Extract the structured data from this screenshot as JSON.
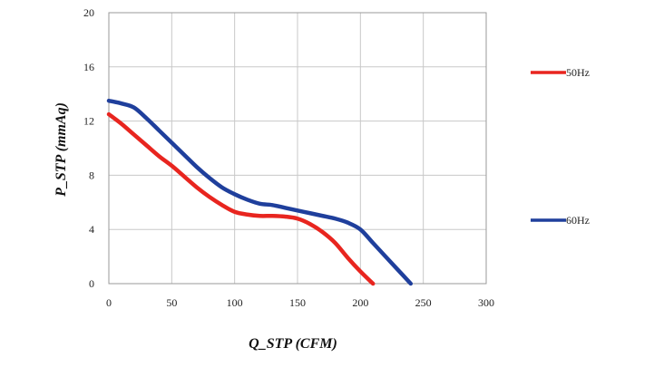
{
  "chart_data": {
    "type": "line",
    "title": "",
    "xlabel": "Q_STP (CFM)",
    "ylabel": "P_STP (mmAq)",
    "xlim": [
      0,
      300
    ],
    "ylim": [
      0,
      20
    ],
    "x_ticks": [
      0,
      50,
      100,
      150,
      200,
      250,
      300
    ],
    "y_ticks": [
      0,
      4,
      8,
      12,
      16,
      20
    ],
    "grid": true,
    "legend_position": "right",
    "series": [
      {
        "name": "50Hz",
        "color": "#e8251f",
        "x": [
          0,
          10,
          20,
          30,
          40,
          50,
          60,
          70,
          80,
          90,
          100,
          110,
          120,
          130,
          140,
          150,
          160,
          170,
          180,
          190,
          200,
          210
        ],
        "y": [
          12.5,
          11.8,
          11.0,
          10.2,
          9.4,
          8.7,
          7.9,
          7.1,
          6.4,
          5.8,
          5.3,
          5.1,
          5.0,
          5.0,
          4.95,
          4.8,
          4.4,
          3.8,
          3.0,
          1.9,
          0.9,
          0
        ]
      },
      {
        "name": "60Hz",
        "color": "#1f3f9c",
        "x": [
          0,
          10,
          20,
          30,
          40,
          50,
          60,
          70,
          80,
          90,
          100,
          110,
          120,
          130,
          140,
          150,
          160,
          170,
          180,
          190,
          200,
          210,
          220,
          230,
          240
        ],
        "y": [
          13.5,
          13.3,
          13.0,
          12.2,
          11.3,
          10.4,
          9.5,
          8.6,
          7.8,
          7.1,
          6.6,
          6.2,
          5.9,
          5.8,
          5.6,
          5.4,
          5.2,
          5.0,
          4.8,
          4.5,
          4.0,
          3.0,
          2.0,
          1.0,
          0
        ]
      }
    ]
  }
}
